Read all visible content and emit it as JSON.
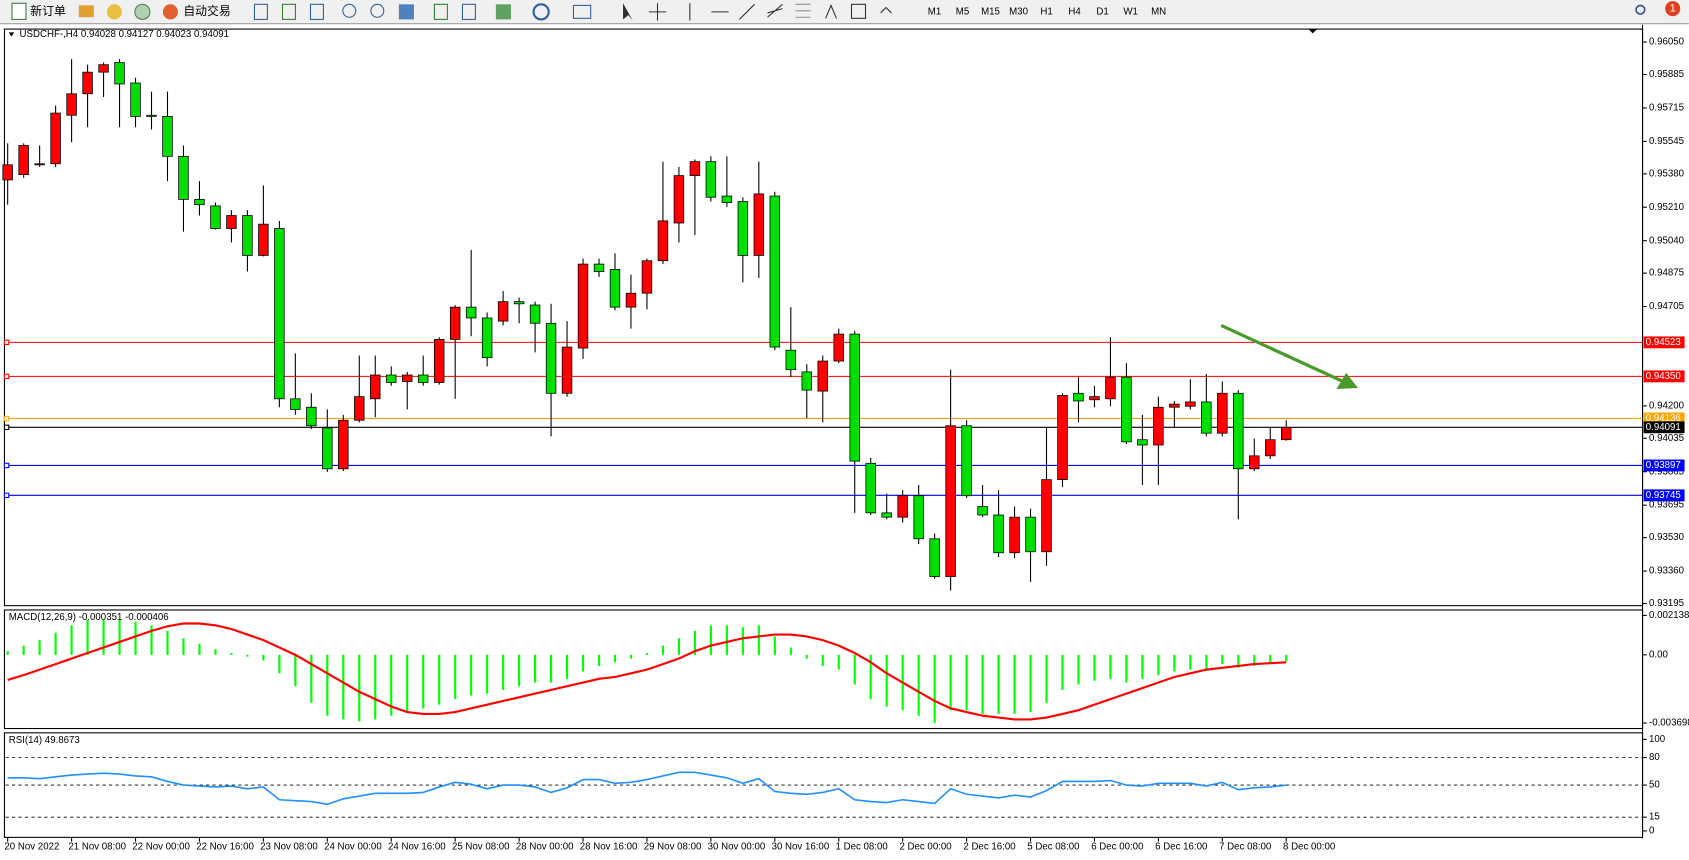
{
  "toolbar": {
    "new_order": "新订单",
    "auto_trading": "自动交易",
    "timeframes": [
      "M1",
      "M5",
      "M15",
      "M30",
      "H1",
      "H4",
      "D1",
      "W1",
      "MN"
    ],
    "notifications": 1
  },
  "chart_data": [
    {
      "type": "candlestick",
      "title": "USDCHF-,H4  0.94028 0.94127 0.94023 0.94091",
      "categories": [
        "20 Nov 2022",
        null,
        null,
        null,
        "21 Nov 08:00",
        null,
        null,
        null,
        "22 Nov 00:00",
        null,
        null,
        null,
        "22 Nov 16:00",
        null,
        null,
        null,
        "23 Nov 08:00",
        null,
        null,
        null,
        "24 Nov 00:00",
        null,
        null,
        null,
        "24 Nov 16:00",
        null,
        null,
        null,
        "25 Nov 08:00",
        null,
        null,
        null,
        "28 Nov 00:00",
        null,
        null,
        null,
        "28 Nov 16:00",
        null,
        null,
        null,
        "29 Nov 08:00",
        null,
        null,
        null,
        "30 Nov 00:00",
        null,
        null,
        null,
        "30 Nov 16:00",
        null,
        null,
        null,
        "1 Dec 08:00",
        null,
        null,
        null,
        "2 Dec 00:00",
        null,
        null,
        null,
        "2 Dec 16:00",
        null,
        null,
        null,
        "5 Dec 08:00",
        null,
        null,
        null,
        "6 Dec 00:00",
        null,
        null,
        null,
        "6 Dec 16:00",
        null,
        null,
        null,
        "7 Dec 08:00",
        null,
        null,
        null,
        "8 Dec 00:00"
      ],
      "open": [
        0.95349,
        0.95376,
        0.95426,
        0.95431,
        0.95678,
        0.95787,
        0.95897,
        0.95946,
        0.95842,
        0.95678,
        0.95672,
        0.95469,
        0.9525,
        0.95217,
        0.95102,
        0.95168,
        0.94965,
        0.95102,
        0.94236,
        0.94193,
        0.94088,
        0.9388,
        0.94127,
        0.94236,
        0.94357,
        0.94324,
        0.94357,
        0.94319,
        0.94538,
        0.94702,
        0.94647,
        0.94631,
        0.9473,
        0.94713,
        0.9462,
        0.94264,
        0.94494,
        0.94921,
        0.94894,
        0.94702,
        0.94773,
        0.94938,
        0.9513,
        0.95371,
        0.95442,
        0.95267,
        0.95239,
        0.94965,
        0.95267,
        0.94483,
        0.94373,
        0.94275,
        0.94428,
        0.94565,
        0.93908,
        0.93656,
        0.93634,
        0.93743,
        0.93524,
        0.93332,
        0.94099,
        0.93688,
        0.93645,
        0.93453,
        0.93634,
        0.93458,
        0.93825,
        0.94264,
        0.94231,
        0.94236,
        0.94346,
        0.94028,
        0.94001,
        0.94193,
        0.94198,
        0.9422,
        0.94061,
        0.94264,
        0.9388,
        0.93946,
        0.94028
      ],
      "high": [
        0.95535,
        0.95535,
        0.95524,
        0.95727,
        0.95963,
        0.95935,
        0.95946,
        0.95963,
        0.95869,
        0.95798,
        0.95798,
        0.95524,
        0.95343,
        0.95234,
        0.95195,
        0.95195,
        0.95321,
        0.95141,
        0.94467,
        0.94264,
        0.94182,
        0.94154,
        0.94456,
        0.94456,
        0.94401,
        0.94373,
        0.94456,
        0.94549,
        0.94713,
        0.94993,
        0.94675,
        0.94784,
        0.94751,
        0.9473,
        0.94719,
        0.94631,
        0.94949,
        0.94949,
        0.94976,
        0.94867,
        0.94949,
        0.95442,
        0.95415,
        0.95453,
        0.95469,
        0.95469,
        0.95261,
        0.95442,
        0.95289,
        0.94702,
        0.94412,
        0.94456,
        0.94593,
        0.94582,
        0.93935,
        0.93754,
        0.93771,
        0.93798,
        0.93551,
        0.94384,
        0.94127,
        0.93798,
        0.93771,
        0.93688,
        0.93677,
        0.94088,
        0.94264,
        0.94346,
        0.94302,
        0.94549,
        0.94417,
        0.94154,
        0.94247,
        0.94225,
        0.94335,
        0.94362,
        0.94324,
        0.9428,
        0.94034,
        0.94088,
        0.94127
      ],
      "low": [
        0.95223,
        0.9536,
        0.95415,
        0.95415,
        0.95541,
        0.95617,
        0.95771,
        0.95617,
        0.95617,
        0.95606,
        0.95343,
        0.95086,
        0.95168,
        0.95097,
        0.95031,
        0.94883,
        0.9496,
        0.94193,
        0.94154,
        0.94083,
        0.93864,
        0.93869,
        0.94116,
        0.94143,
        0.94302,
        0.94182,
        0.94302,
        0.94308,
        0.94236,
        0.94554,
        0.94401,
        0.94609,
        0.9462,
        0.94472,
        0.94045,
        0.94247,
        0.94439,
        0.94856,
        0.94686,
        0.94593,
        0.94691,
        0.94921,
        0.95031,
        0.95069,
        0.95239,
        0.95212,
        0.94828,
        0.9485,
        0.94483,
        0.94346,
        0.94138,
        0.94116,
        0.94417,
        0.93656,
        0.93645,
        0.93623,
        0.93606,
        0.93497,
        0.93321,
        0.93261,
        0.93732,
        0.93634,
        0.93431,
        0.93425,
        0.93305,
        0.93387,
        0.93787,
        0.94116,
        0.94193,
        0.94198,
        0.94006,
        0.93798,
        0.93798,
        0.94088,
        0.94182,
        0.94045,
        0.94045,
        0.93623,
        0.93869,
        0.9393,
        0.94023
      ],
      "close": [
        0.95426,
        0.95524,
        0.95431,
        0.95689,
        0.95787,
        0.95897,
        0.95935,
        0.95837,
        0.95672,
        0.95672,
        0.95469,
        0.9525,
        0.95223,
        0.95102,
        0.95168,
        0.94965,
        0.95124,
        0.94236,
        0.94182,
        0.94099,
        0.9388,
        0.94127,
        0.94247,
        0.94357,
        0.94319,
        0.94357,
        0.94319,
        0.94538,
        0.94702,
        0.94647,
        0.94445,
        0.9473,
        0.94719,
        0.9462,
        0.94264,
        0.94499,
        0.94921,
        0.94883,
        0.94702,
        0.94773,
        0.94938,
        0.95141,
        0.95371,
        0.95442,
        0.95261,
        0.95234,
        0.94965,
        0.95278,
        0.94499,
        0.94384,
        0.9428,
        0.94428,
        0.94565,
        0.93919,
        0.93656,
        0.93634,
        0.93743,
        0.93524,
        0.93332,
        0.94099,
        0.93743,
        0.93645,
        0.93453,
        0.93634,
        0.93458,
        0.93825,
        0.94253,
        0.94225,
        0.94247,
        0.94346,
        0.94017,
        0.94001,
        0.94193,
        0.94209,
        0.9422,
        0.94061,
        0.94264,
        0.9388,
        0.93946,
        0.94028,
        0.94091
      ],
      "up_color": "#ff0000",
      "down_color": "#00e000",
      "ylim": [
        0.93184,
        0.96116
      ],
      "yticks": [
        {
          "value": 0.9605,
          "label": "0.96050"
        },
        0.95885,
        0.95715,
        0.95545,
        {
          "value": 0.9538,
          "label": "0.95380"
        },
        {
          "value": 0.9521,
          "label": "0.95210"
        },
        {
          "value": 0.9504,
          "label": "0.95040"
        },
        0.94875,
        0.94705,
        {
          "value": 0.942,
          "label": "0.94200"
        },
        0.94035,
        0.93865,
        0.93695,
        {
          "value": 0.9353,
          "label": "0.93530"
        },
        {
          "value": 0.9336,
          "label": "0.93360"
        },
        0.93195
      ],
      "levels": [
        {
          "value": 0.94523,
          "color": "#ff0000"
        },
        {
          "value": 0.9435,
          "label": "0.94350",
          "color": "#ff0000"
        },
        {
          "value": 0.94136,
          "color": "#ffa500"
        },
        {
          "value": 0.94091,
          "color": "#000000"
        },
        {
          "value": 0.93897,
          "color": "#0000ff"
        },
        {
          "value": 0.93745,
          "color": "#0000ff"
        }
      ]
    },
    {
      "type": "macd",
      "title": "MACD(12,26,9) -0.000351 -0.000406",
      "histogram": {
        "color": "#00ff00",
        "values": [
          0.0002,
          0.0005,
          0.0008,
          0.0012,
          0.0016,
          0.0019,
          0.0019,
          0.0019,
          0.0018,
          0.0016,
          0.0013,
          0.0009,
          0.0006,
          0.0003,
          0.0001,
          -0.0001,
          -0.0003,
          -0.001,
          -0.0017,
          -0.0026,
          -0.0033,
          -0.0035,
          -0.0036,
          -0.0035,
          -0.0033,
          -0.0031,
          -0.0029,
          -0.0027,
          -0.0024,
          -0.0022,
          -0.0021,
          -0.0019,
          -0.0017,
          -0.0015,
          -0.0015,
          -0.0013,
          -0.0009,
          -0.0006,
          -0.0004,
          -0.0002,
          0.0001,
          0.0005,
          0.0009,
          0.0013,
          0.0016,
          0.0016,
          0.0015,
          0.0016,
          0.001,
          0.0004,
          -0.0002,
          -0.0006,
          -0.0008,
          -0.0016,
          -0.0024,
          -0.0028,
          -0.003,
          -0.0033,
          -0.0037,
          -0.003,
          -0.003,
          -0.0032,
          -0.0032,
          -0.0032,
          -0.0031,
          -0.0026,
          -0.0019,
          -0.0016,
          -0.0014,
          -0.0013,
          -0.0015,
          -0.0013,
          -0.0011,
          -0.0009,
          -0.0008,
          -0.0008,
          -0.0005,
          -0.0007,
          -0.0006,
          -0.0005,
          -0.000351
        ]
      },
      "signal": {
        "color": "#ff0000",
        "values": [
          -0.00136,
          -0.0011,
          -0.0008,
          -0.0005,
          -0.0002,
          0.0001,
          0.0004,
          0.0007,
          0.001,
          0.0013,
          0.00155,
          0.0017,
          0.0017,
          0.0016,
          0.0014,
          0.0011,
          0.0008,
          0.0004,
          0.0,
          -0.0005,
          -0.001,
          -0.0015,
          -0.002,
          -0.0024,
          -0.0028,
          -0.0031,
          -0.0032,
          -0.0032,
          -0.0031,
          -0.0029,
          -0.0027,
          -0.0025,
          -0.0023,
          -0.0021,
          -0.0019,
          -0.0017,
          -0.0015,
          -0.0013,
          -0.0012,
          -0.001,
          -0.0008,
          -0.0005,
          -0.0002,
          0.0002,
          0.0005,
          0.0007,
          0.0009,
          0.001,
          0.0011,
          0.0011,
          0.001,
          0.0008,
          0.0005,
          0.0001,
          -0.0004,
          -0.001,
          -0.0015,
          -0.002,
          -0.0025,
          -0.0029,
          -0.0031,
          -0.0033,
          -0.0034,
          -0.0035,
          -0.0035,
          -0.0034,
          -0.0032,
          -0.003,
          -0.0027,
          -0.0024,
          -0.0021,
          -0.0018,
          -0.0015,
          -0.0012,
          -0.001,
          -0.0008,
          -0.0007,
          -0.0006,
          -0.0005,
          -0.00045,
          -0.000406
        ]
      },
      "ylim": [
        -0.003993,
        0.002433
      ],
      "yticks": [
        0.002138,
        {
          "value": 0,
          "label": "0.00"
        },
        -0.003698
      ]
    },
    {
      "type": "line",
      "title": "RSI(14) 49.8673",
      "color": "#1e90ff",
      "values": [
        58,
        58,
        57,
        59,
        61,
        62,
        63,
        62,
        60,
        59,
        54,
        50,
        49,
        48,
        49,
        46,
        48,
        34,
        33,
        32,
        29,
        35,
        38,
        41,
        41,
        41,
        42,
        48,
        53,
        51,
        46,
        50,
        50,
        48,
        42,
        47,
        56,
        56,
        52,
        53,
        56,
        60,
        64,
        64,
        61,
        58,
        52,
        57,
        43,
        41,
        40,
        42,
        46,
        34,
        32,
        31,
        34,
        32,
        30,
        46,
        40,
        38,
        36,
        39,
        37,
        44,
        54,
        54,
        54,
        55,
        50,
        49,
        52,
        52,
        52,
        49,
        53,
        45,
        47,
        48,
        49.8673
      ],
      "ylim": [
        0,
        100
      ],
      "yticks": [
        100,
        80,
        50,
        15,
        0
      ],
      "levels": [
        80,
        50,
        15
      ]
    }
  ]
}
